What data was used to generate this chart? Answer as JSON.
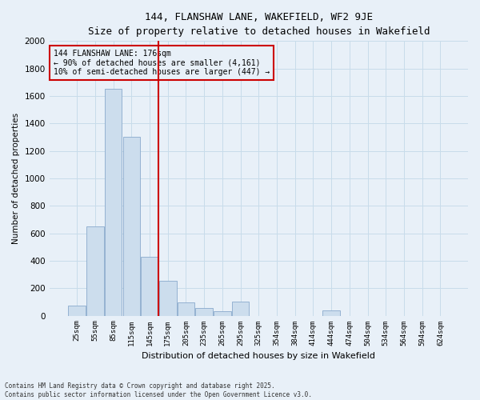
{
  "title1": "144, FLANSHAW LANE, WAKEFIELD, WF2 9JE",
  "title2": "Size of property relative to detached houses in Wakefield",
  "xlabel": "Distribution of detached houses by size in Wakefield",
  "ylabel": "Number of detached properties",
  "categories": [
    "25sqm",
    "55sqm",
    "85sqm",
    "115sqm",
    "145sqm",
    "175sqm",
    "205sqm",
    "235sqm",
    "265sqm",
    "295sqm",
    "325sqm",
    "354sqm",
    "384sqm",
    "414sqm",
    "444sqm",
    "474sqm",
    "504sqm",
    "534sqm",
    "564sqm",
    "594sqm",
    "624sqm"
  ],
  "values": [
    75,
    650,
    1650,
    1300,
    430,
    255,
    95,
    55,
    30,
    105,
    0,
    0,
    0,
    0,
    40,
    0,
    0,
    0,
    0,
    0,
    0
  ],
  "bar_color": "#ccdded",
  "bar_edge_color": "#89aacc",
  "vline_x_index": 5,
  "vline_color": "#cc0000",
  "annotation_line1": "144 FLANSHAW LANE: 176sqm",
  "annotation_line2": "← 90% of detached houses are smaller (4,161)",
  "annotation_line3": "10% of semi-detached houses are larger (447) →",
  "annotation_box_color": "#cc0000",
  "ylim": [
    0,
    2000
  ],
  "yticks": [
    0,
    200,
    400,
    600,
    800,
    1000,
    1200,
    1400,
    1600,
    1800,
    2000
  ],
  "grid_color": "#c8dcea",
  "bg_color": "#e8f0f8",
  "footnote": "Contains HM Land Registry data © Crown copyright and database right 2025.\nContains public sector information licensed under the Open Government Licence v3.0."
}
